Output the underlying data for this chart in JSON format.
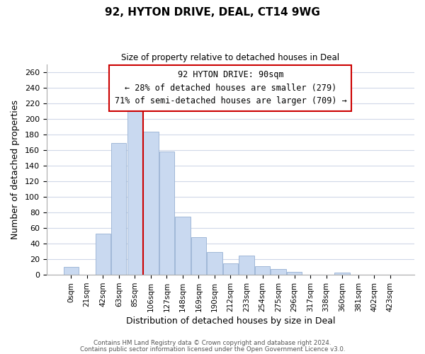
{
  "title": "92, HYTON DRIVE, DEAL, CT14 9WG",
  "subtitle": "Size of property relative to detached houses in Deal",
  "xlabel": "Distribution of detached houses by size in Deal",
  "ylabel": "Number of detached properties",
  "bar_color": "#c9d9f0",
  "bar_edge_color": "#a0b8d8",
  "highlight_line_color": "#cc0000",
  "categories": [
    "0sqm",
    "21sqm",
    "42sqm",
    "63sqm",
    "85sqm",
    "106sqm",
    "127sqm",
    "148sqm",
    "169sqm",
    "190sqm",
    "212sqm",
    "233sqm",
    "254sqm",
    "275sqm",
    "296sqm",
    "317sqm",
    "338sqm",
    "360sqm",
    "381sqm",
    "402sqm",
    "423sqm"
  ],
  "values": [
    10,
    0,
    53,
    169,
    219,
    183,
    158,
    75,
    48,
    29,
    15,
    25,
    11,
    7,
    4,
    0,
    0,
    3,
    0,
    0,
    0
  ],
  "ylim": [
    0,
    270
  ],
  "yticks": [
    0,
    20,
    40,
    60,
    80,
    100,
    120,
    140,
    160,
    180,
    200,
    220,
    240,
    260
  ],
  "annotation_title": "92 HYTON DRIVE: 90sqm",
  "annotation_line1": "← 28% of detached houses are smaller (279)",
  "annotation_line2": "71% of semi-detached houses are larger (709) →",
  "footer_line1": "Contains HM Land Registry data © Crown copyright and database right 2024.",
  "footer_line2": "Contains public sector information licensed under the Open Government Licence v3.0.",
  "background_color": "#ffffff",
  "grid_color": "#d0d8e8",
  "fig_width": 6.0,
  "fig_height": 5.0
}
